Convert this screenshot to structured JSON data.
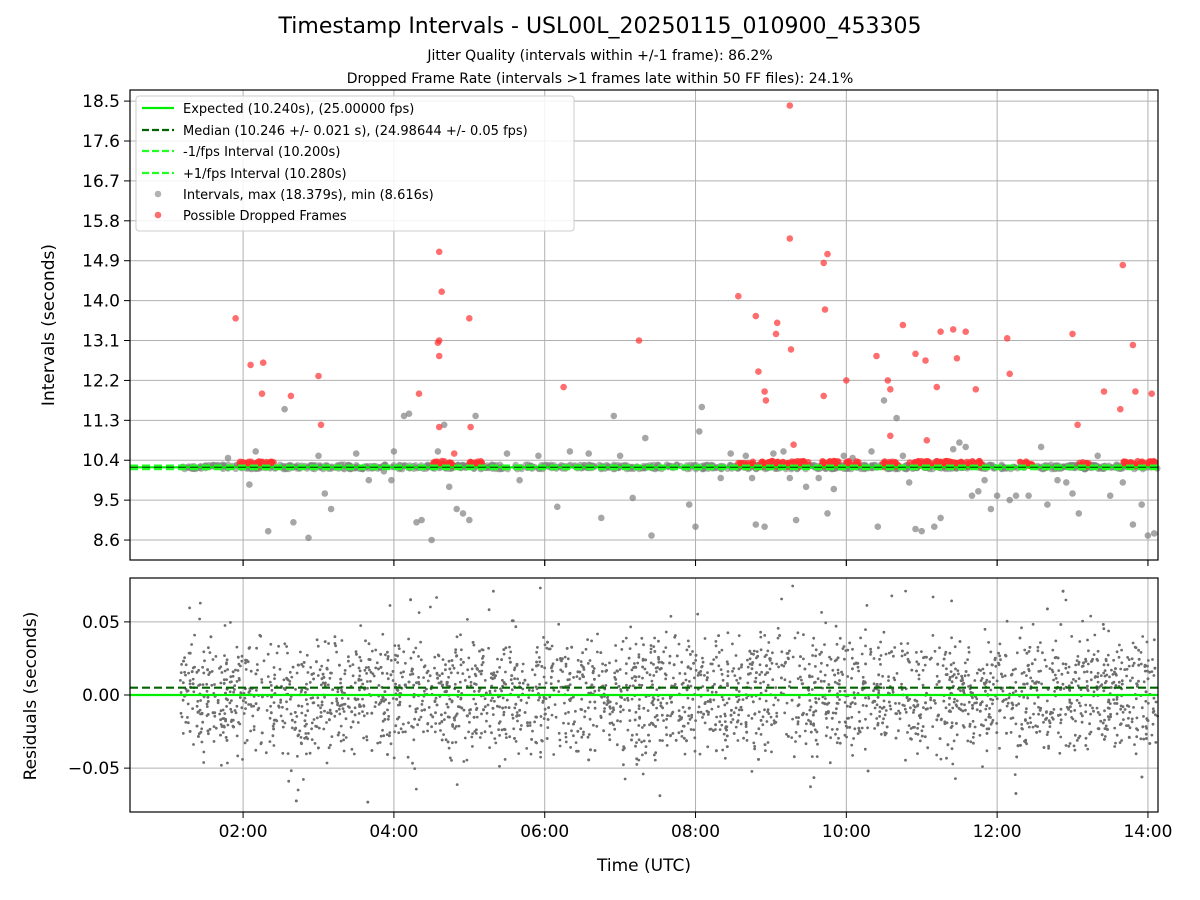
{
  "title": "Timestamp Intervals - USL00L_20250115_010900_453305",
  "subtitle1": "Jitter Quality (intervals within +/-1 frame): 86.2%",
  "subtitle2": "Dropped Frame Rate (intervals >1 frames late within 50 FF files): 24.1%",
  "colors": {
    "expected": "#00ee00",
    "median": "#006400",
    "interval_bounds": "#22ff22",
    "intervals": "#808080",
    "dropped": "#ff3030",
    "residuals": "#6e6e6e"
  },
  "chart_data": [
    {
      "type": "scatter",
      "ylabel": "Intervals (seconds)",
      "xlim": [
        "00:30",
        "14:08"
      ],
      "ylim": [
        8.15,
        18.75
      ],
      "yticks": [
        "8.6",
        "9.5",
        "10.4",
        "11.3",
        "12.2",
        "13.1",
        "14.0",
        "14.9",
        "15.8",
        "16.7",
        "17.6",
        "18.5"
      ],
      "xticks": [
        "02:00",
        "04:00",
        "06:00",
        "08:00",
        "10:00",
        "12:00",
        "14:00"
      ],
      "grid": true,
      "legend_position": "top-left",
      "lines": [
        {
          "name": "Expected (10.240s), (25.00000 fps)",
          "y": 10.24,
          "style": "solid"
        },
        {
          "name": "Median (10.246 +/- 0.021 s), (24.98644 +/- 0.05 fps)",
          "y": 10.246,
          "style": "dashed"
        },
        {
          "name": "-1/fps Interval (10.200s)",
          "y": 10.2,
          "style": "dashed"
        },
        {
          "name": "+1/fps Interval (10.280s)",
          "y": 10.28,
          "style": "dashed"
        }
      ],
      "series": [
        {
          "name": "Intervals, max (18.379s), min (8.616s)",
          "band": {
            "x_start": "01:10",
            "x_end": "14:08",
            "y_min": 10.2,
            "y_max": 10.3
          },
          "points": [
            [
              "01:48",
              10.45
            ],
            [
              "02:05",
              9.85
            ],
            [
              "02:10",
              10.6
            ],
            [
              "02:20",
              8.8
            ],
            [
              "02:33",
              11.55
            ],
            [
              "02:40",
              9.0
            ],
            [
              "02:52",
              8.65
            ],
            [
              "03:00",
              10.5
            ],
            [
              "03:05",
              9.65
            ],
            [
              "03:10",
              9.3
            ],
            [
              "03:18",
              10.3
            ],
            [
              "03:30",
              10.55
            ],
            [
              "03:40",
              9.95
            ],
            [
              "03:52",
              10.15
            ],
            [
              "03:58",
              9.95
            ],
            [
              "04:00",
              10.6
            ],
            [
              "04:08",
              11.4
            ],
            [
              "04:12",
              11.45
            ],
            [
              "04:18",
              9.0
            ],
            [
              "04:22",
              9.05
            ],
            [
              "04:30",
              8.6
            ],
            [
              "04:35",
              10.6
            ],
            [
              "04:40",
              11.2
            ],
            [
              "04:44",
              9.8
            ],
            [
              "04:50",
              9.3
            ],
            [
              "04:55",
              9.2
            ],
            [
              "05:00",
              9.05
            ],
            [
              "05:05",
              11.4
            ],
            [
              "05:18",
              10.3
            ],
            [
              "05:30",
              10.55
            ],
            [
              "05:40",
              9.95
            ],
            [
              "05:55",
              10.5
            ],
            [
              "06:10",
              9.35
            ],
            [
              "06:20",
              10.6
            ],
            [
              "06:35",
              10.55
            ],
            [
              "06:45",
              9.1
            ],
            [
              "06:55",
              11.4
            ],
            [
              "07:00",
              10.5
            ],
            [
              "07:10",
              9.55
            ],
            [
              "07:20",
              10.9
            ],
            [
              "07:25",
              8.7
            ],
            [
              "07:45",
              10.3
            ],
            [
              "07:55",
              9.4
            ],
            [
              "08:00",
              8.9
            ],
            [
              "08:03",
              11.05
            ],
            [
              "08:05",
              11.6
            ],
            [
              "08:20",
              10.0
            ],
            [
              "08:28",
              10.55
            ],
            [
              "08:40",
              10.5
            ],
            [
              "08:45",
              10.0
            ],
            [
              "08:48",
              8.95
            ],
            [
              "08:55",
              8.9
            ],
            [
              "09:02",
              10.55
            ],
            [
              "09:10",
              10.6
            ],
            [
              "09:15",
              10.0
            ],
            [
              "09:20",
              9.05
            ],
            [
              "09:28",
              9.8
            ],
            [
              "09:38",
              10.0
            ],
            [
              "09:45",
              9.2
            ],
            [
              "09:50",
              9.75
            ],
            [
              "09:58",
              10.5
            ],
            [
              "10:05",
              10.45
            ],
            [
              "10:20",
              10.6
            ],
            [
              "10:25",
              8.9
            ],
            [
              "10:30",
              11.75
            ],
            [
              "10:40",
              11.35
            ],
            [
              "10:45",
              10.5
            ],
            [
              "10:50",
              9.9
            ],
            [
              "10:55",
              8.85
            ],
            [
              "11:00",
              8.8
            ],
            [
              "11:10",
              8.9
            ],
            [
              "11:15",
              9.1
            ],
            [
              "11:25",
              10.65
            ],
            [
              "11:30",
              10.8
            ],
            [
              "11:35",
              10.7
            ],
            [
              "11:40",
              9.6
            ],
            [
              "11:45",
              9.7
            ],
            [
              "11:50",
              9.95
            ],
            [
              "11:55",
              9.3
            ],
            [
              "12:00",
              9.6
            ],
            [
              "12:10",
              9.5
            ],
            [
              "12:15",
              9.6
            ],
            [
              "12:25",
              9.6
            ],
            [
              "12:35",
              10.7
            ],
            [
              "12:40",
              9.4
            ],
            [
              "12:48",
              9.95
            ],
            [
              "12:55",
              9.9
            ],
            [
              "13:00",
              9.65
            ],
            [
              "13:05",
              9.2
            ],
            [
              "13:10",
              10.2
            ],
            [
              "13:20",
              10.5
            ],
            [
              "13:30",
              9.6
            ],
            [
              "13:35",
              10.3
            ],
            [
              "13:40",
              9.9
            ],
            [
              "13:48",
              8.95
            ],
            [
              "13:55",
              9.4
            ],
            [
              "14:00",
              8.7
            ],
            [
              "14:05",
              8.75
            ]
          ]
        },
        {
          "name": "Possible Dropped Frames",
          "clusters": [
            {
              "x_start": "01:57",
              "x_end": "02:25"
            },
            {
              "x_start": "04:31",
              "x_end": "04:47"
            },
            {
              "x_start": "05:00",
              "x_end": "05:11"
            },
            {
              "x_start": "08:34",
              "x_end": "08:48"
            },
            {
              "x_start": "08:51",
              "x_end": "09:10"
            },
            {
              "x_start": "09:12",
              "x_end": "09:30"
            },
            {
              "x_start": "09:40",
              "x_end": "09:55"
            },
            {
              "x_start": "10:00",
              "x_end": "10:10"
            },
            {
              "x_start": "10:28",
              "x_end": "10:42"
            },
            {
              "x_start": "10:50",
              "x_end": "11:48"
            },
            {
              "x_start": "12:18",
              "x_end": "12:28"
            },
            {
              "x_start": "13:05",
              "x_end": "13:13"
            },
            {
              "x_start": "13:40",
              "x_end": "14:06"
            }
          ],
          "points": [
            [
              "01:54",
              13.6
            ],
            [
              "02:06",
              12.55
            ],
            [
              "02:15",
              11.9
            ],
            [
              "02:16",
              12.6
            ],
            [
              "02:38",
              11.85
            ],
            [
              "03:00",
              12.3
            ],
            [
              "03:02",
              11.2
            ],
            [
              "04:20",
              11.9
            ],
            [
              "04:35",
              13.05
            ],
            [
              "04:36",
              13.1
            ],
            [
              "04:36",
              12.75
            ],
            [
              "04:36",
              11.15
            ],
            [
              "04:36",
              15.1
            ],
            [
              "04:38",
              14.2
            ],
            [
              "04:48",
              10.55
            ],
            [
              "05:00",
              13.6
            ],
            [
              "05:01",
              11.15
            ],
            [
              "06:15",
              12.05
            ],
            [
              "07:15",
              13.1
            ],
            [
              "08:34",
              14.1
            ],
            [
              "08:48",
              13.65
            ],
            [
              "08:50",
              12.4
            ],
            [
              "08:55",
              11.95
            ],
            [
              "08:56",
              11.75
            ],
            [
              "09:04",
              13.25
            ],
            [
              "09:05",
              13.5
            ],
            [
              "09:15",
              15.4
            ],
            [
              "09:15",
              18.4
            ],
            [
              "09:16",
              12.9
            ],
            [
              "09:18",
              10.75
            ],
            [
              "09:42",
              11.85
            ],
            [
              "09:42",
              14.85
            ],
            [
              "09:43",
              13.8
            ],
            [
              "09:45",
              15.05
            ],
            [
              "10:00",
              12.2
            ],
            [
              "10:24",
              12.75
            ],
            [
              "10:33",
              12.2
            ],
            [
              "10:35",
              12.0
            ],
            [
              "10:35",
              10.95
            ],
            [
              "10:45",
              13.45
            ],
            [
              "10:55",
              12.8
            ],
            [
              "11:03",
              12.65
            ],
            [
              "11:04",
              10.85
            ],
            [
              "11:12",
              12.05
            ],
            [
              "11:15",
              13.3
            ],
            [
              "11:25",
              13.35
            ],
            [
              "11:28",
              12.7
            ],
            [
              "11:35",
              13.3
            ],
            [
              "11:43",
              12.0
            ],
            [
              "12:08",
              13.15
            ],
            [
              "12:10",
              12.35
            ],
            [
              "13:00",
              13.25
            ],
            [
              "13:04",
              11.2
            ],
            [
              "13:25",
              11.95
            ],
            [
              "13:38",
              11.55
            ],
            [
              "13:40",
              14.8
            ],
            [
              "13:48",
              13.0
            ],
            [
              "13:50",
              11.95
            ],
            [
              "14:03",
              11.9
            ]
          ]
        }
      ]
    },
    {
      "type": "scatter",
      "ylabel": "Residuals (seconds)",
      "xlabel": "Time (UTC)",
      "xlim": [
        "00:30",
        "14:08"
      ],
      "ylim": [
        -0.08,
        0.08
      ],
      "yticks": [
        "0.05",
        "0.00",
        "−0.05"
      ],
      "xticks": [
        "02:00",
        "04:00",
        "06:00",
        "08:00",
        "10:00",
        "12:00",
        "14:00"
      ],
      "grid": true,
      "lines": [
        {
          "name": "Expected",
          "y": 0.0,
          "style": "solid"
        },
        {
          "name": "Median",
          "y": 0.005,
          "style": "dashed"
        }
      ],
      "series": [
        {
          "name": "Residuals",
          "x_range": [
            "01:10",
            "14:08"
          ],
          "count": 3200,
          "levels": [
            0.02,
            0.0,
            -0.02
          ],
          "spread": 0.025
        }
      ]
    }
  ]
}
